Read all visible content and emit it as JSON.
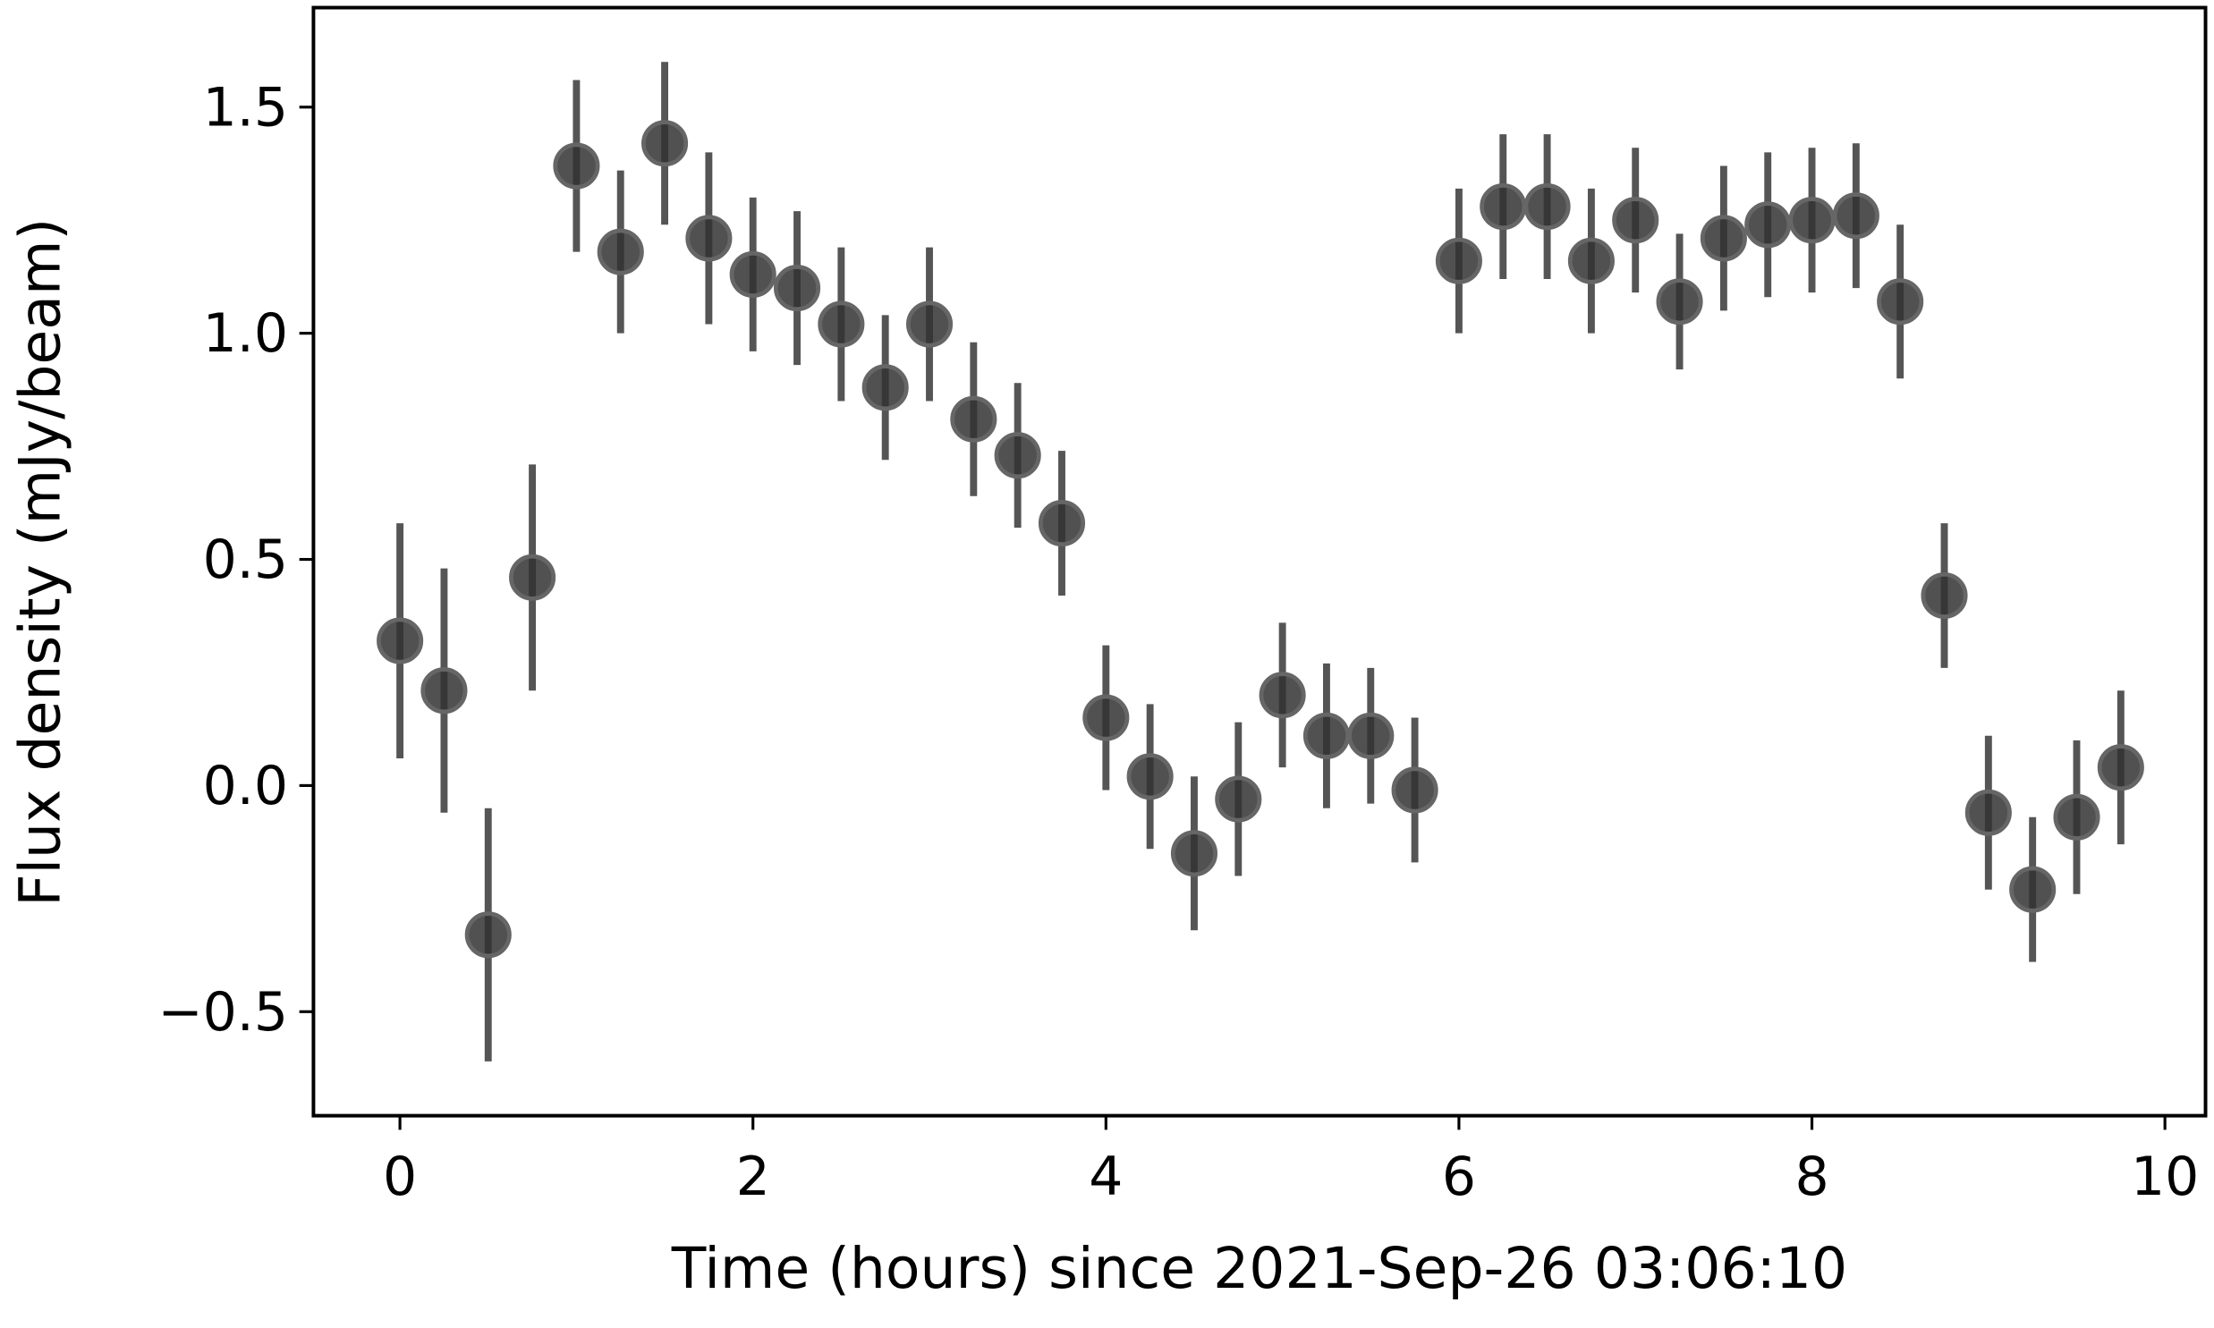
{
  "chart_data": {
    "type": "scatter",
    "xlabel": "Time (hours) since 2021-Sep-26 03:06:10",
    "ylabel": "Flux density (mJy/beam)",
    "x": [
      0,
      0.25,
      0.5,
      0.75,
      1.0,
      1.25,
      1.5,
      1.75,
      2.0,
      2.25,
      2.5,
      2.75,
      3.0,
      3.25,
      3.5,
      3.75,
      4.0,
      4.25,
      4.5,
      4.75,
      5.0,
      5.25,
      5.5,
      5.75,
      6.0,
      6.25,
      6.5,
      6.75,
      7.0,
      7.25,
      7.5,
      7.75,
      8.0,
      8.25,
      8.5,
      8.75,
      9.0,
      9.25,
      9.5,
      9.75
    ],
    "series": [
      {
        "color": "#333333",
        "error_color": "#555555",
        "values": [
          0.32,
          0.21,
          -0.33,
          0.46,
          1.37,
          1.18,
          1.42,
          1.21,
          1.13,
          1.1,
          1.02,
          0.88,
          1.02,
          0.81,
          0.73,
          0.58,
          0.15,
          0.02,
          -0.15,
          -0.03,
          0.2,
          0.11,
          0.11,
          -0.01,
          1.16,
          1.28,
          1.28,
          1.16,
          1.25,
          1.07,
          1.21,
          1.24,
          1.25,
          1.26,
          1.07,
          0.42,
          -0.06,
          -0.23,
          -0.07,
          0.04
        ],
        "errors": [
          0.26,
          0.27,
          0.28,
          0.25,
          0.19,
          0.18,
          0.18,
          0.19,
          0.17,
          0.17,
          0.17,
          0.16,
          0.17,
          0.17,
          0.16,
          0.16,
          0.16,
          0.16,
          0.17,
          0.17,
          0.16,
          0.16,
          0.15,
          0.16,
          0.16,
          0.16,
          0.16,
          0.16,
          0.16,
          0.15,
          0.16,
          0.16,
          0.16,
          0.16,
          0.17,
          0.16,
          0.17,
          0.16,
          0.17,
          0.17
        ]
      }
    ],
    "xlim": [
      -0.49,
      10.23
    ],
    "ylim": [
      -0.73,
      1.72
    ],
    "xticks": [
      0,
      2,
      4,
      6,
      8,
      10
    ],
    "yticks": [
      {
        "value": -0.5,
        "label": "−0.5"
      },
      {
        "value": 0,
        "label": "0.0"
      },
      0.5,
      {
        "value": 1,
        "label": "1.0"
      },
      1.5
    ],
    "grid": false
  }
}
